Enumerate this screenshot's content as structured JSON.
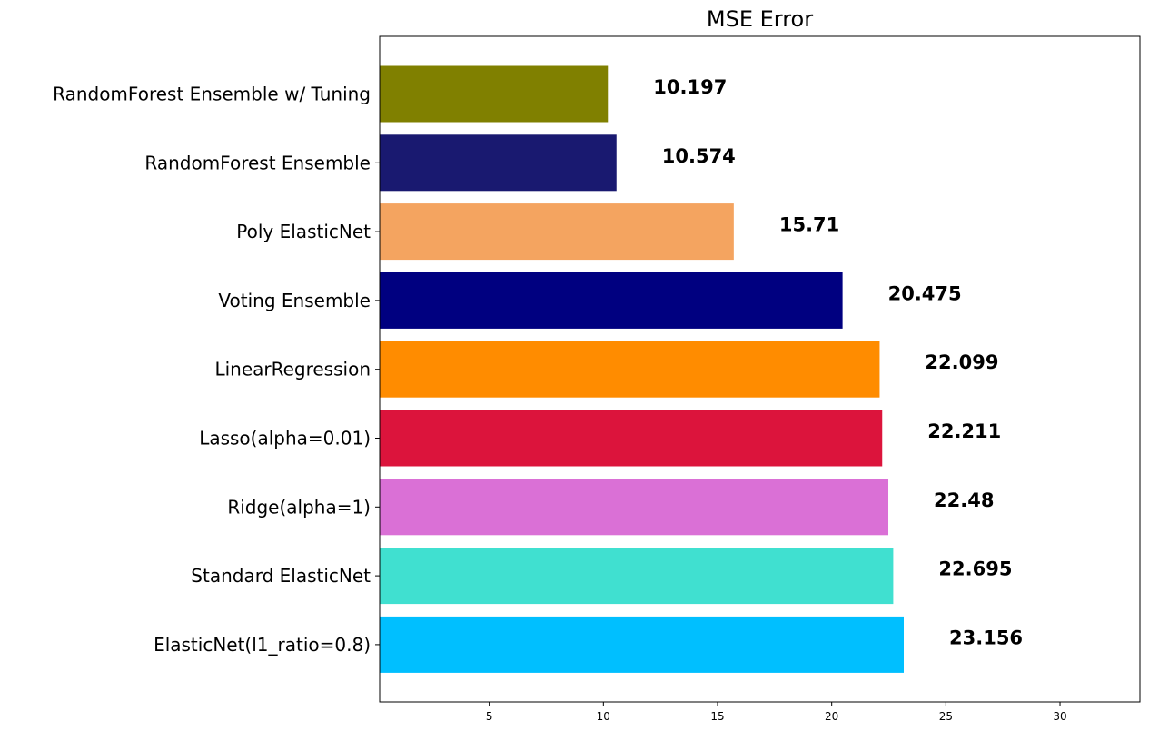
{
  "chart_data": {
    "type": "bar",
    "orientation": "horizontal",
    "title": "MSE Error",
    "xlabel": "",
    "ylabel": "",
    "categories": [
      "RandomForest Ensemble w/ Tuning",
      "RandomForest Ensemble",
      "Poly ElasticNet",
      "Voting Ensemble",
      "LinearRegression",
      "Lasso(alpha=0.01)",
      "Ridge(alpha=1)",
      "Standard ElasticNet",
      "ElasticNet(l1_ratio=0.8)"
    ],
    "values": [
      10.197,
      10.574,
      15.71,
      20.475,
      22.099,
      22.211,
      22.48,
      22.695,
      23.156
    ],
    "value_labels": [
      "10.197",
      "10.574",
      "15.71",
      "20.475",
      "22.099",
      "22.211",
      "22.48",
      "22.695",
      "23.156"
    ],
    "colors": [
      "#808000",
      "#191970",
      "#f4a460",
      "#000080",
      "#ff8c00",
      "#dc143c",
      "#da70d6",
      "#40e0d0",
      "#00bfff"
    ],
    "xlim": [
      0.2,
      33.5
    ],
    "xticks": [
      5,
      10,
      15,
      20,
      25,
      30
    ],
    "grid": false,
    "legend": "none"
  }
}
